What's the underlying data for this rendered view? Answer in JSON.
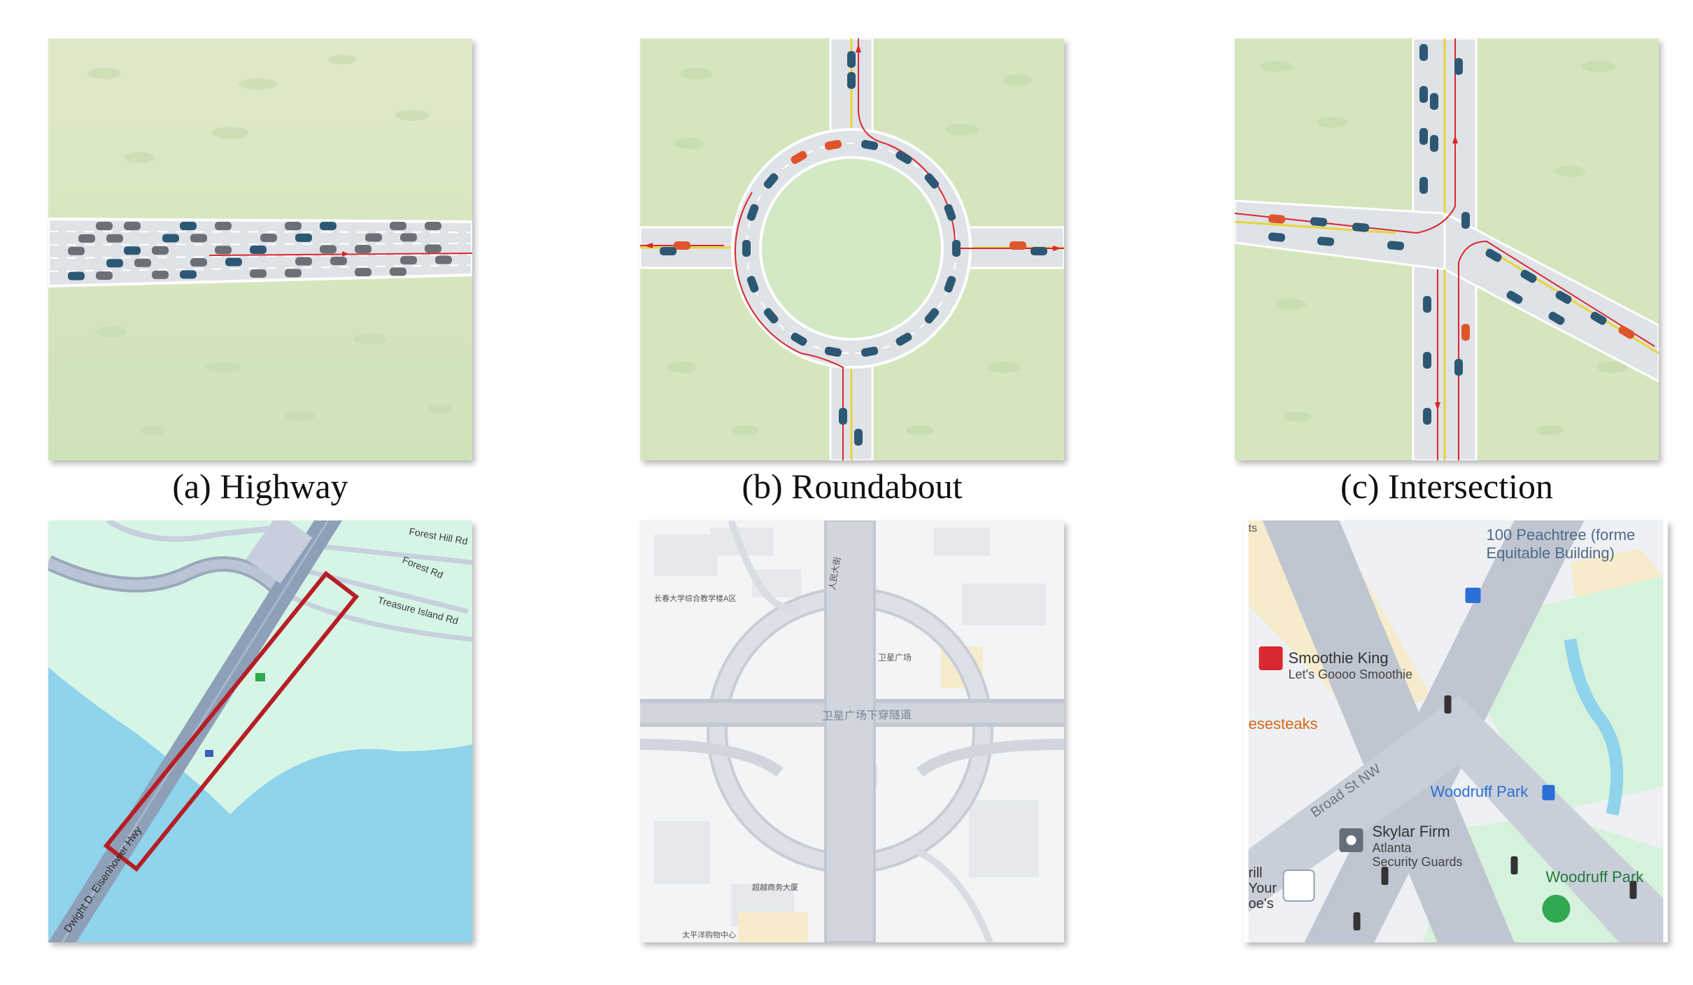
{
  "captions": {
    "highway": "(a) Highway",
    "roundabout": "(b) Roundabout",
    "intersection": "(c) Intersection"
  },
  "map_highway": {
    "road_label": "Dwight D. Eisenhower Hwy",
    "forest_hill": "Forest Hill Rd",
    "forest_rd": "Forest Rd",
    "treasure": "Treasure Island Rd"
  },
  "map_roundabout": {
    "top_left": "长春大学综合教学楼A区",
    "road_a": "人民大街",
    "road_b": "卫星广场",
    "tunnel": "卫星广场下穿隧道",
    "bldg_1": "超越商务大厦",
    "bldg_2": "太平洋购物中心"
  },
  "map_intersection": {
    "peachtree": "100 Peachtree (forme",
    "equitable": "Equitable Building)",
    "smoothie": "Smoothie King",
    "smoothie_sub": "Let's Goooo Smoothie",
    "cheesesteaks": "esesteaks",
    "broad": "Broad St NW",
    "woodruff": "Woodruff Park",
    "skylar": "Skylar Firm",
    "atlanta": "Atlanta",
    "guards": "Security Guards",
    "woodruff2": "Woodruff Park",
    "rill": "rill",
    "your": "Your",
    "oes": "oe's",
    "ts": "ts"
  },
  "colors": {
    "grass": "#d6e6c0",
    "road": "#d9dde3",
    "car_blue": "#2d5874",
    "car_red": "#e0542c",
    "route": "#d9282f",
    "water": "#8fd3ec",
    "map_green": "#d7f5e6",
    "highlight": "#b61e25"
  }
}
